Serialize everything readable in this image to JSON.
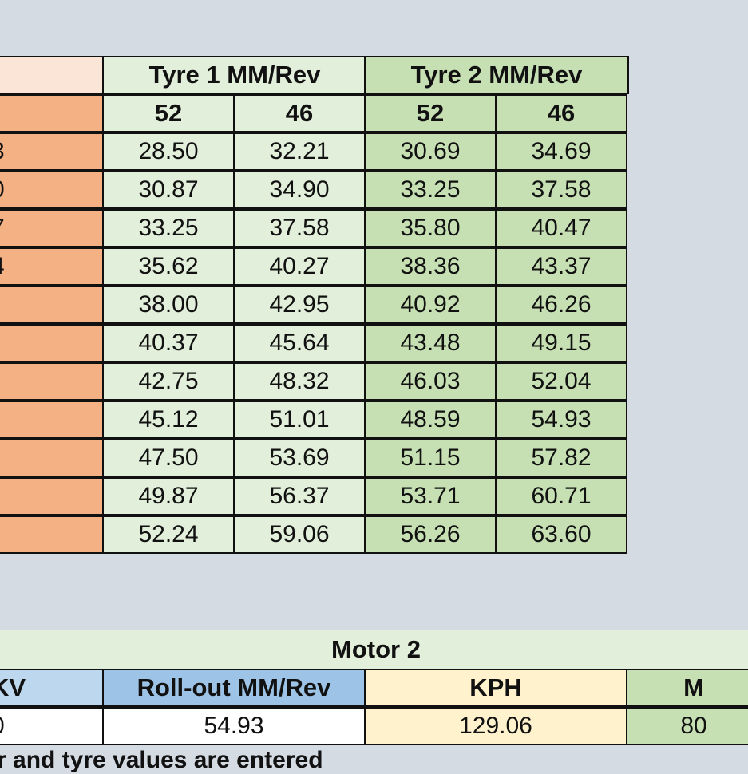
{
  "top_table": {
    "header_groups": [
      "Tyre 1 MM/Rev",
      "Tyre 2 MM/Rev"
    ],
    "subheaders": [
      "52",
      "46",
      "52",
      "46"
    ],
    "left_column": [
      "3",
      "0",
      "7",
      "4"
    ],
    "rows": [
      [
        "28.50",
        "32.21",
        "30.69",
        "34.69"
      ],
      [
        "30.87",
        "34.90",
        "33.25",
        "37.58"
      ],
      [
        "33.25",
        "37.58",
        "35.80",
        "40.47"
      ],
      [
        "35.62",
        "40.27",
        "38.36",
        "43.37"
      ],
      [
        "38.00",
        "42.95",
        "40.92",
        "46.26"
      ],
      [
        "40.37",
        "45.64",
        "43.48",
        "49.15"
      ],
      [
        "42.75",
        "48.32",
        "46.03",
        "52.04"
      ],
      [
        "45.12",
        "51.01",
        "48.59",
        "54.93"
      ],
      [
        "47.50",
        "53.69",
        "51.15",
        "57.82"
      ],
      [
        "49.87",
        "56.37",
        "53.71",
        "60.71"
      ],
      [
        "52.24",
        "59.06",
        "56.26",
        "63.60"
      ]
    ]
  },
  "motor_table": {
    "title": "Motor 2",
    "headers": [
      "KV",
      "Roll-out MM/Rev",
      "KPH",
      "M"
    ],
    "values": [
      "0",
      "54.93",
      "129.06",
      "80"
    ]
  },
  "note": "r and tyre values are entered"
}
